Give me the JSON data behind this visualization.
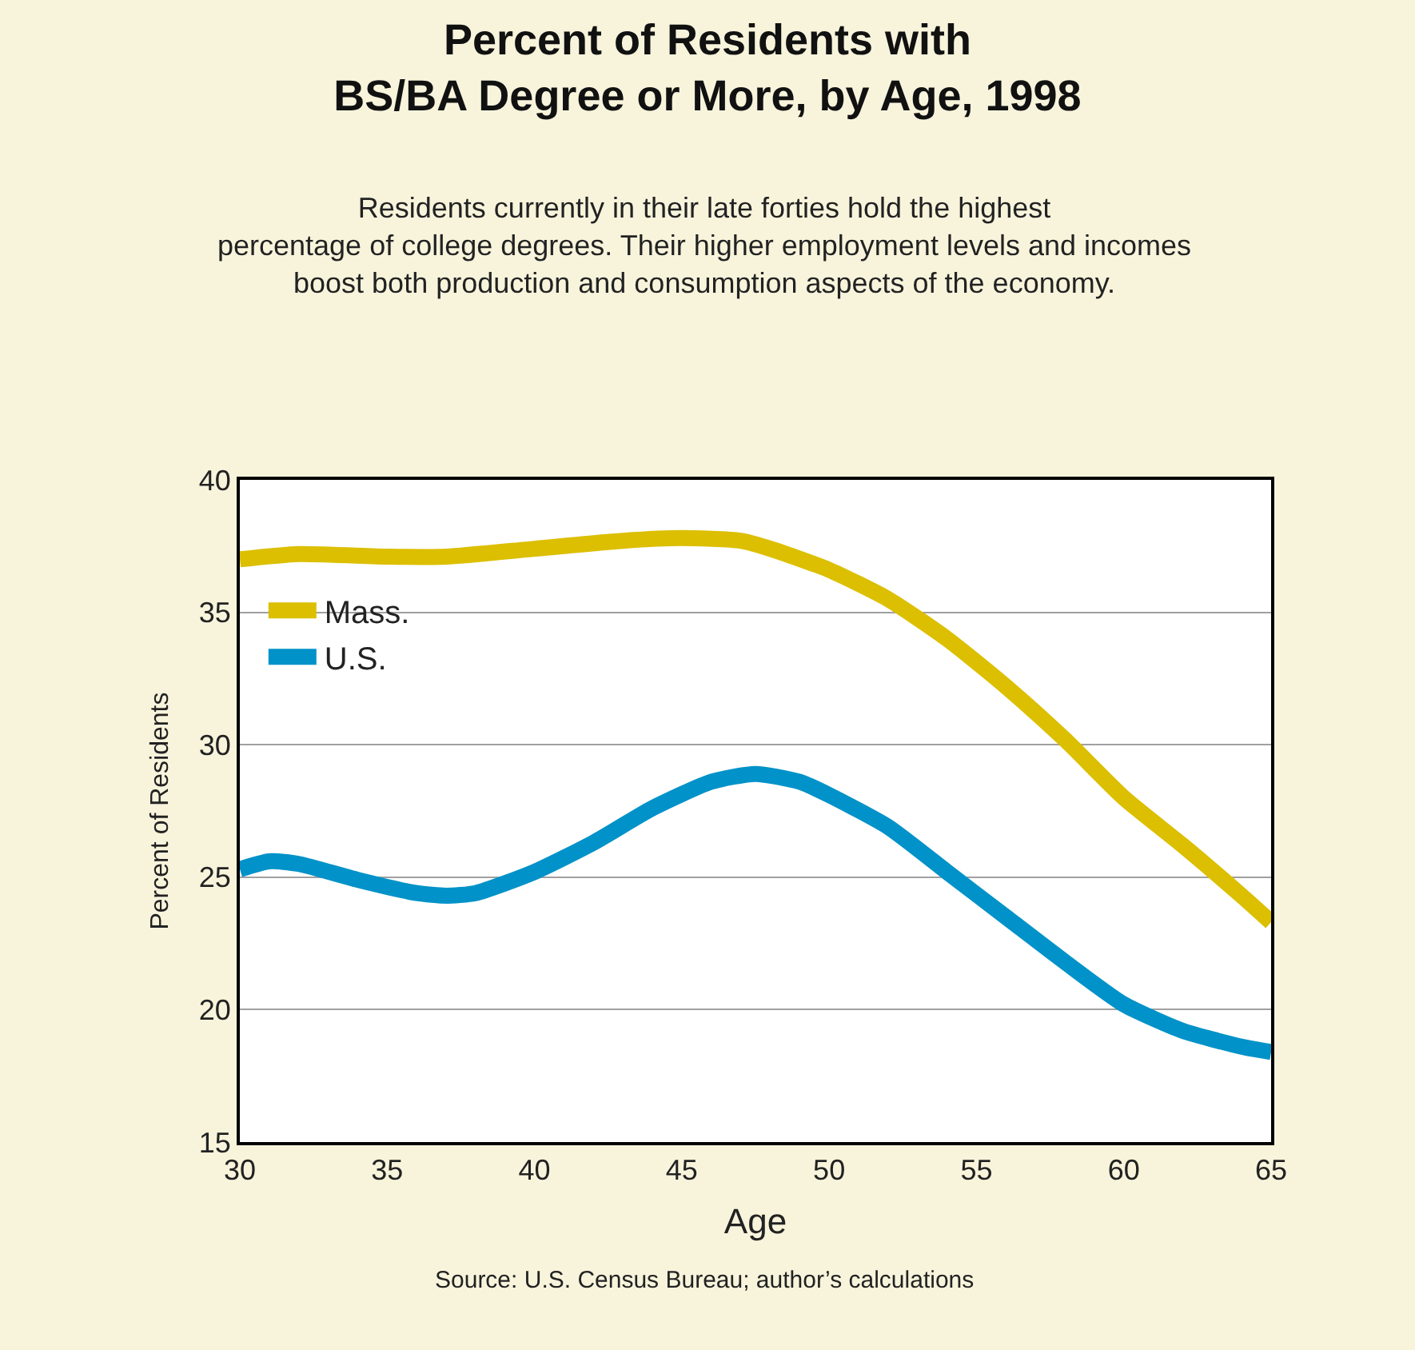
{
  "chart_data": {
    "type": "line",
    "title": "Percent of Residents with\nBS/BA Degree or More, by Age, 1998",
    "subtitle": "Residents currently in their late forties hold the highest\npercentage of college degrees. Their higher employment levels and incomes\nboost both production and consumption aspects of the economy.",
    "xlabel": "Age",
    "ylabel": "Percent of Residents",
    "annotations": [
      "Source: U.S. Census Bureau; author’s calculations"
    ],
    "series": [
      {
        "name": "Mass.",
        "color": "#dcbf00",
        "x": [
          30,
          32,
          35,
          37,
          40,
          43,
          45,
          47,
          48,
          50,
          52,
          54,
          56,
          58,
          60,
          62,
          64,
          65
        ],
        "values": [
          37.0,
          37.2,
          37.1,
          37.1,
          37.4,
          37.7,
          37.8,
          37.7,
          37.4,
          36.6,
          35.5,
          34.0,
          32.2,
          30.2,
          28.0,
          26.2,
          24.3,
          23.3
        ]
      },
      {
        "name": "U.S.",
        "color": "#0092c8",
        "x": [
          30,
          31,
          32,
          34,
          36,
          37,
          38,
          40,
          42,
          44,
          46,
          47.5,
          49,
          50,
          52,
          54,
          56,
          58,
          60,
          62,
          64,
          65
        ],
        "values": [
          25.3,
          25.6,
          25.5,
          24.9,
          24.4,
          24.3,
          24.4,
          25.2,
          26.3,
          27.6,
          28.6,
          28.9,
          28.6,
          28.1,
          26.9,
          25.2,
          23.5,
          21.8,
          20.2,
          19.2,
          18.6,
          18.4
        ]
      }
    ],
    "xlim": [
      30,
      65
    ],
    "xticks": [
      30,
      35,
      40,
      45,
      50,
      55,
      60,
      65
    ],
    "ylim": [
      15,
      40
    ],
    "yticks": [
      15,
      20,
      25,
      30,
      35,
      40
    ],
    "grid": "y",
    "legend": "top left",
    "marker": "none",
    "line_style": "solid"
  }
}
